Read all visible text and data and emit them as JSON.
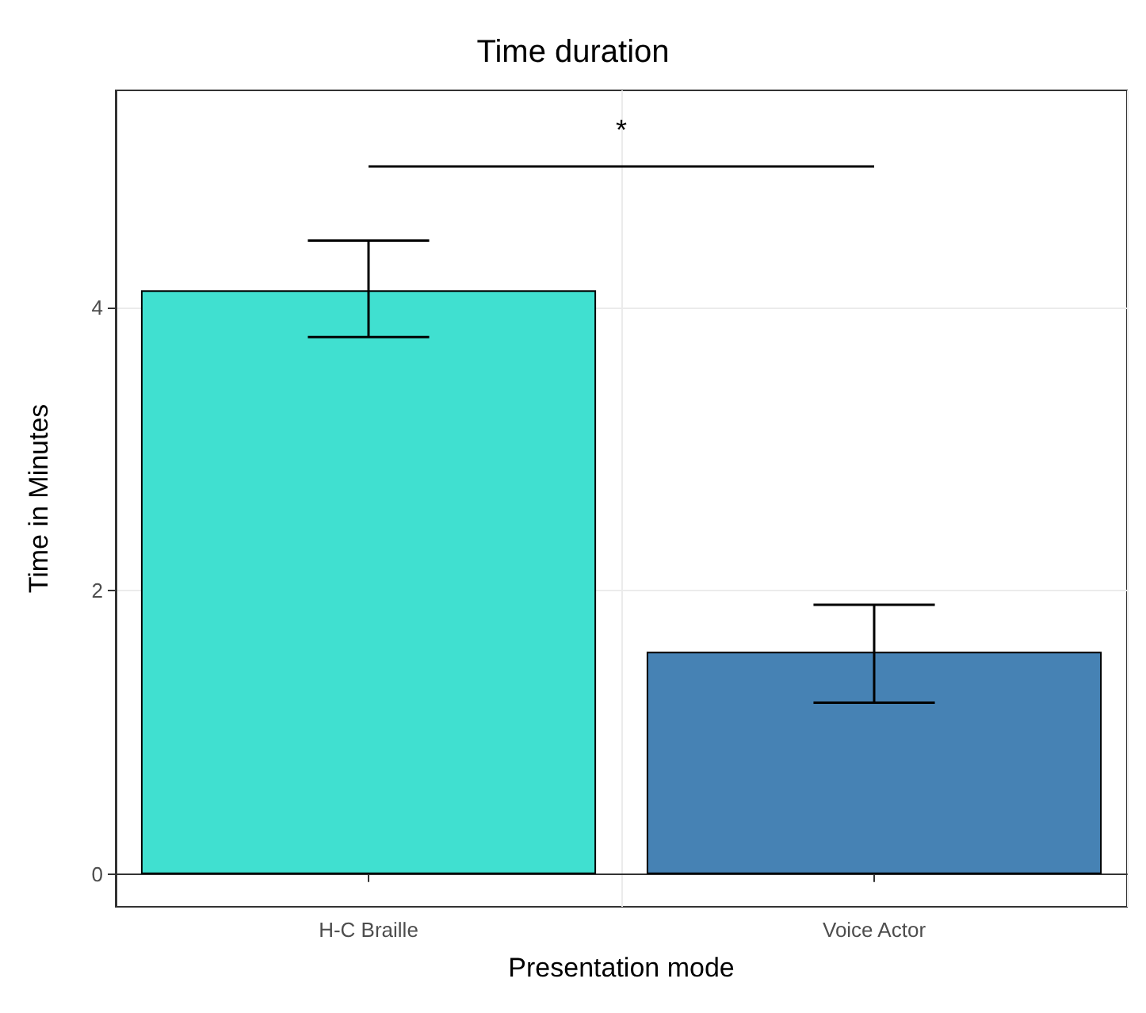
{
  "chart_data": {
    "type": "bar",
    "title": "Time duration",
    "xlabel": "Presentation mode",
    "ylabel": "Time in Minutes",
    "categories": [
      "H-C Braille",
      "Voice Actor"
    ],
    "values": [
      4.12,
      1.57
    ],
    "colors": [
      "#40e0d0",
      "#4682b4"
    ],
    "errors": [
      [
        3.79,
        4.47
      ],
      [
        1.21,
        1.9
      ]
    ],
    "ylim": [
      -0.23,
      5.53
    ],
    "yticks": [
      0,
      2,
      4
    ],
    "grid": true,
    "annotations": [
      "*"
    ]
  }
}
